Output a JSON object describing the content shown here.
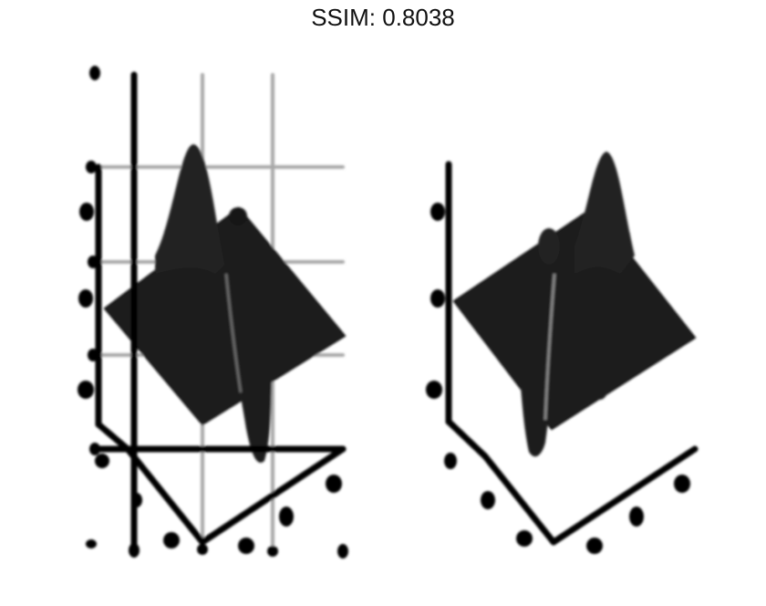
{
  "title": "SSIM: 0.8038",
  "colors": {
    "background": "#ffffff",
    "surface": "#1e1e1e",
    "axis": "#000000",
    "grid": "#a8a8a8"
  },
  "chart_data": [
    {
      "type": "surface3d",
      "panel": "left",
      "title": "",
      "xlabel": "",
      "ylabel": "",
      "zlabel": "",
      "tick_labels_visible": false,
      "grid": true,
      "colormap": "gray"
    },
    {
      "type": "surface3d",
      "panel": "right",
      "title": "",
      "xlabel": "",
      "ylabel": "",
      "zlabel": "",
      "tick_labels_visible": false,
      "grid": false,
      "colormap": "gray"
    }
  ]
}
